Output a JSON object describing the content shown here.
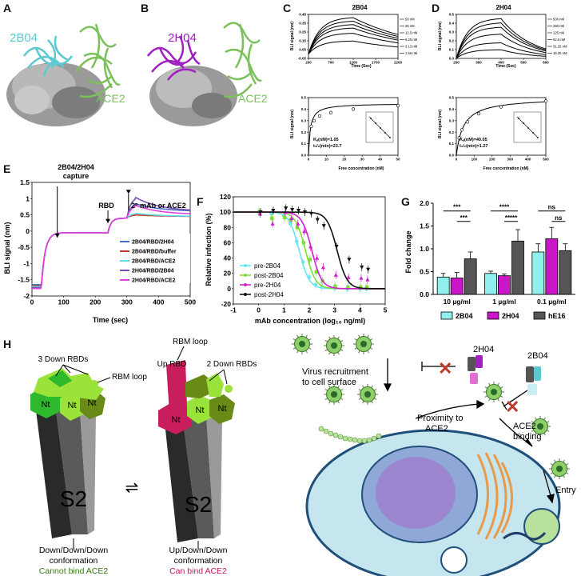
{
  "panels": {
    "A": {
      "label": "A",
      "antibody": "2B04",
      "receptor": "ACE2"
    },
    "B": {
      "label": "B",
      "antibody": "2H04",
      "receptor": "ACE2"
    },
    "C": {
      "label": "C",
      "title": "2B04",
      "x_label": "Time (Sec)",
      "y_label": "BLI signal (nm)",
      "x_ticks": [
        "200",
        "700",
        "1200",
        "1700",
        "2200"
      ],
      "y_ticks": [
        "-0.05",
        "0.05",
        "0.15",
        "0.25",
        "0.35",
        "0.45"
      ],
      "legend": [
        "50 nM",
        "25 nM",
        "12.5 nM",
        "6.25 nM",
        "3.13 nM",
        "1.56 nM"
      ],
      "fit_x_label": "Free concentration (nM)",
      "fit_y_label": "BLI signal (nm)",
      "fit_x_ticks": [
        "0",
        "10",
        "20",
        "30",
        "40",
        "50"
      ],
      "fit_y_ticks": [
        "0.0",
        "0.1",
        "0.2",
        "0.3",
        "0.4",
        "0.5"
      ],
      "kd": "Kₐ(nM)=1.05",
      "thalf": "t₁/₂(min)=23.7"
    },
    "D": {
      "label": "D",
      "title": "2H04",
      "x_label": "Time (Sec)",
      "y_label": "BLI signal (nm)",
      "x_ticks": [
        "200",
        "300",
        "400",
        "500",
        "600"
      ],
      "y_ticks": [
        "0.0",
        "0.1",
        "0.2",
        "0.3",
        "0.4",
        "0.5"
      ],
      "legend": [
        "500 nM",
        "250 nM",
        "125 nM",
        "62.5 nM",
        "31.25 nM",
        "16.25 nM"
      ],
      "fit_x_label": "Free concentration (nM)",
      "fit_y_label": "BLI signal (nm)",
      "fit_x_ticks": [
        "0",
        "100",
        "200",
        "300",
        "400",
        "500"
      ],
      "fit_y_ticks": [
        "0.0",
        "0.1",
        "0.2",
        "0.3",
        "0.4",
        "0.5"
      ],
      "kd": "Kₐ(nM)=40.05",
      "thalf": "t₁/₂(min)=1.27"
    },
    "E": {
      "label": "E",
      "x_label": "Time (sec)",
      "y_label": "BLI signal (nm)",
      "x_ticks": [
        "0",
        "100",
        "200",
        "300",
        "400",
        "500"
      ],
      "y_ticks": [
        "-2",
        "-1.5",
        "-1",
        "-0.5",
        "0",
        "0.5",
        "1",
        "1.5"
      ],
      "ann_capture": "2B04/2H04\ncapture",
      "ann_rbd": "RBD",
      "ann_second": "2° mAb or ACE2",
      "legend": [
        {
          "name": "2B04/RBD/2H04",
          "color": "#4a6fc7"
        },
        {
          "name": "2B04/RBD/buffer",
          "color": "#c0392b"
        },
        {
          "name": "2B04/RBD/ACE2",
          "color": "#5fe0e8"
        },
        {
          "name": "2H04/RBD/2B04",
          "color": "#7a4fb0"
        },
        {
          "name": "2H04/RBD/ACE2",
          "color": "#e040e0"
        }
      ]
    },
    "F": {
      "label": "F",
      "x_label": "mAb concentration (log₁₀ ng/ml)",
      "y_label": "Relative infection (%)",
      "x_ticks": [
        "-1",
        "0",
        "1",
        "2",
        "3",
        "4",
        "5"
      ],
      "y_ticks": [
        "-20",
        "0",
        "20",
        "40",
        "60",
        "80",
        "100",
        "120"
      ],
      "legend": [
        {
          "name": "pre-2B04",
          "color": "#66e5f0"
        },
        {
          "name": "post-2B04",
          "color": "#7ee030"
        },
        {
          "name": "pre-2H04",
          "color": "#d020d0"
        },
        {
          "name": "post-2H04",
          "color": "#111111"
        }
      ]
    },
    "G": {
      "label": "G",
      "y_label": "Fold change",
      "y_ticks": [
        "0.0",
        "0.5",
        "1.0",
        "1.5",
        "2.0"
      ],
      "groups": [
        "10 µg/ml",
        "1 µg/ml",
        "0.1 µg/ml"
      ],
      "sig": [
        "***",
        "***",
        "****",
        "*****",
        "ns",
        "ns"
      ],
      "legend": [
        {
          "name": "2B04",
          "color": "#8ff0ee"
        },
        {
          "name": "2H04",
          "color": "#c816c8"
        },
        {
          "name": "hE16",
          "color": "#555555"
        }
      ]
    },
    "H": {
      "label": "H",
      "left_top": "3 Down RBDs",
      "left_loop": "RBM loop",
      "nt": "Nt",
      "s2": "S2",
      "right_loop": "RBM loop",
      "right_up": "Up RBD",
      "right_down": "2 Down RBDs",
      "left_conf": "Down/Down/Down\nconformation",
      "left_bind": "Cannot bind ACE2",
      "right_conf": "Up/Down/Down\nconformation",
      "right_bind": "Can bind ACE2",
      "left_bind_color": "#3a7a10",
      "right_bind_color": "#c2185b",
      "equilibrium": "⇌"
    },
    "I": {
      "label": "I",
      "virus_recruit": "Virus recruitment\nto cell surface",
      "mab_2h04": "2H04",
      "mab_2b04": "2B04",
      "proximity": "Proximity to\nACE2",
      "ace2_binding": "ACE2\nbinding",
      "entry": "Entry"
    }
  },
  "chart_data": [
    {
      "type": "line",
      "panel": "C-top",
      "title": "2B04",
      "xlabel": "Time (Sec)",
      "ylabel": "BLI signal (nm)",
      "xlim": [
        200,
        2200
      ],
      "ylim": [
        -0.05,
        0.45
      ],
      "series": [
        {
          "name": "50 nM",
          "plateau": 0.42
        },
        {
          "name": "25 nM",
          "plateau": 0.38
        },
        {
          "name": "12.5 nM",
          "plateau": 0.34
        },
        {
          "name": "6.25 nM",
          "plateau": 0.3
        },
        {
          "name": "3.13 nM",
          "plateau": 0.24
        },
        {
          "name": "1.56 nM",
          "plateau": 0.15
        }
      ],
      "assoc_end": 1200
    },
    {
      "type": "scatter",
      "panel": "C-bottom",
      "xlabel": "Free concentration (nM)",
      "ylabel": "BLI signal (nm)",
      "xlim": [
        0,
        50
      ],
      "ylim": [
        0,
        0.5
      ],
      "x": [
        1.56,
        3.13,
        6.25,
        12.5,
        25,
        50
      ],
      "y": [
        0.25,
        0.3,
        0.34,
        0.37,
        0.4,
        0.43
      ],
      "bmax": 0.45,
      "kd": 1.05
    },
    {
      "type": "line",
      "panel": "D-top",
      "title": "2H04",
      "xlabel": "Time (Sec)",
      "ylabel": "BLI signal (nm)",
      "xlim": [
        200,
        600
      ],
      "ylim": [
        0,
        0.5
      ],
      "series": [
        {
          "name": "500 nM",
          "plateau": 0.46
        },
        {
          "name": "250 nM",
          "plateau": 0.41
        },
        {
          "name": "125 nM",
          "plateau": 0.36
        },
        {
          "name": "62.5 nM",
          "plateau": 0.28
        },
        {
          "name": "31.25 nM",
          "plateau": 0.18
        },
        {
          "name": "16.25 nM",
          "plateau": 0.1
        }
      ],
      "assoc_end": 400
    },
    {
      "type": "scatter",
      "panel": "D-bottom",
      "xlabel": "Free concentration (nM)",
      "ylabel": "BLI signal (nm)",
      "xlim": [
        0,
        500
      ],
      "ylim": [
        0,
        0.5
      ],
      "x": [
        16.25,
        31.25,
        62.5,
        125,
        250,
        500
      ],
      "y": [
        0.15,
        0.22,
        0.29,
        0.36,
        0.42,
        0.47
      ],
      "bmax": 0.5,
      "kd": 40.05
    },
    {
      "type": "line",
      "panel": "E",
      "xlabel": "Time (sec)",
      "ylabel": "BLI signal (nm)",
      "xlim": [
        0,
        500
      ],
      "ylim": [
        -2,
        1.5
      ],
      "series": [
        {
          "name": "2B04/RBD/2H04",
          "final": 0.6,
          "peak": 0.85
        },
        {
          "name": "2B04/RBD/buffer",
          "final": 0.45,
          "peak": 0.5
        },
        {
          "name": "2B04/RBD/ACE2",
          "final": 0.45,
          "peak": 0.55
        },
        {
          "name": "2H04/RBD/2B04",
          "final": 0.6,
          "peak": 1.05
        },
        {
          "name": "2H04/RBD/ACE2",
          "final": 0.5,
          "peak": 0.8
        }
      ]
    },
    {
      "type": "scatter",
      "panel": "F",
      "xlabel": "mAb concentration (log10 ng/ml)",
      "ylabel": "Relative infection (%)",
      "xlim": [
        -1,
        5
      ],
      "ylim": [
        -20,
        120
      ],
      "x": [
        0,
        0.5,
        1,
        1.25,
        1.5,
        1.75,
        2,
        2.25,
        2.5,
        3,
        3.5,
        4,
        4.25
      ],
      "series": [
        {
          "name": "pre-2B04",
          "ic50": 1.6,
          "y": [
            100,
            98,
            95,
            85,
            62,
            35,
            15,
            5,
            2,
            1,
            0,
            0,
            0
          ]
        },
        {
          "name": "post-2B04",
          "ic50": 1.85,
          "y": [
            100,
            92,
            93,
            90,
            80,
            60,
            38,
            22,
            10,
            3,
            2,
            2,
            2
          ]
        },
        {
          "name": "pre-2H04",
          "ic50": 2.1,
          "y": [
            98,
            85,
            100,
            92,
            85,
            75,
            55,
            40,
            28,
            18,
            15,
            14,
            12
          ]
        },
        {
          "name": "post-2H04",
          "ic50": 3.1,
          "y": [
            100,
            102,
            105,
            103,
            102,
            100,
            98,
            90,
            82,
            55,
            38,
            28,
            25
          ]
        }
      ]
    },
    {
      "type": "bar",
      "panel": "G",
      "ylabel": "Fold change",
      "ylim": [
        0,
        2
      ],
      "categories": [
        "10 µg/ml",
        "1 µg/ml",
        "0.1 µg/ml"
      ],
      "series": [
        {
          "name": "2B04",
          "values": [
            0.38,
            0.46,
            0.93
          ],
          "err": [
            0.08,
            0.05,
            0.18
          ]
        },
        {
          "name": "2H04",
          "values": [
            0.36,
            0.41,
            1.22
          ],
          "err": [
            0.12,
            0.04,
            0.25
          ]
        },
        {
          "name": "hE16",
          "values": [
            0.78,
            1.17,
            0.96
          ],
          "err": [
            0.15,
            0.25,
            0.15
          ]
        }
      ]
    }
  ]
}
